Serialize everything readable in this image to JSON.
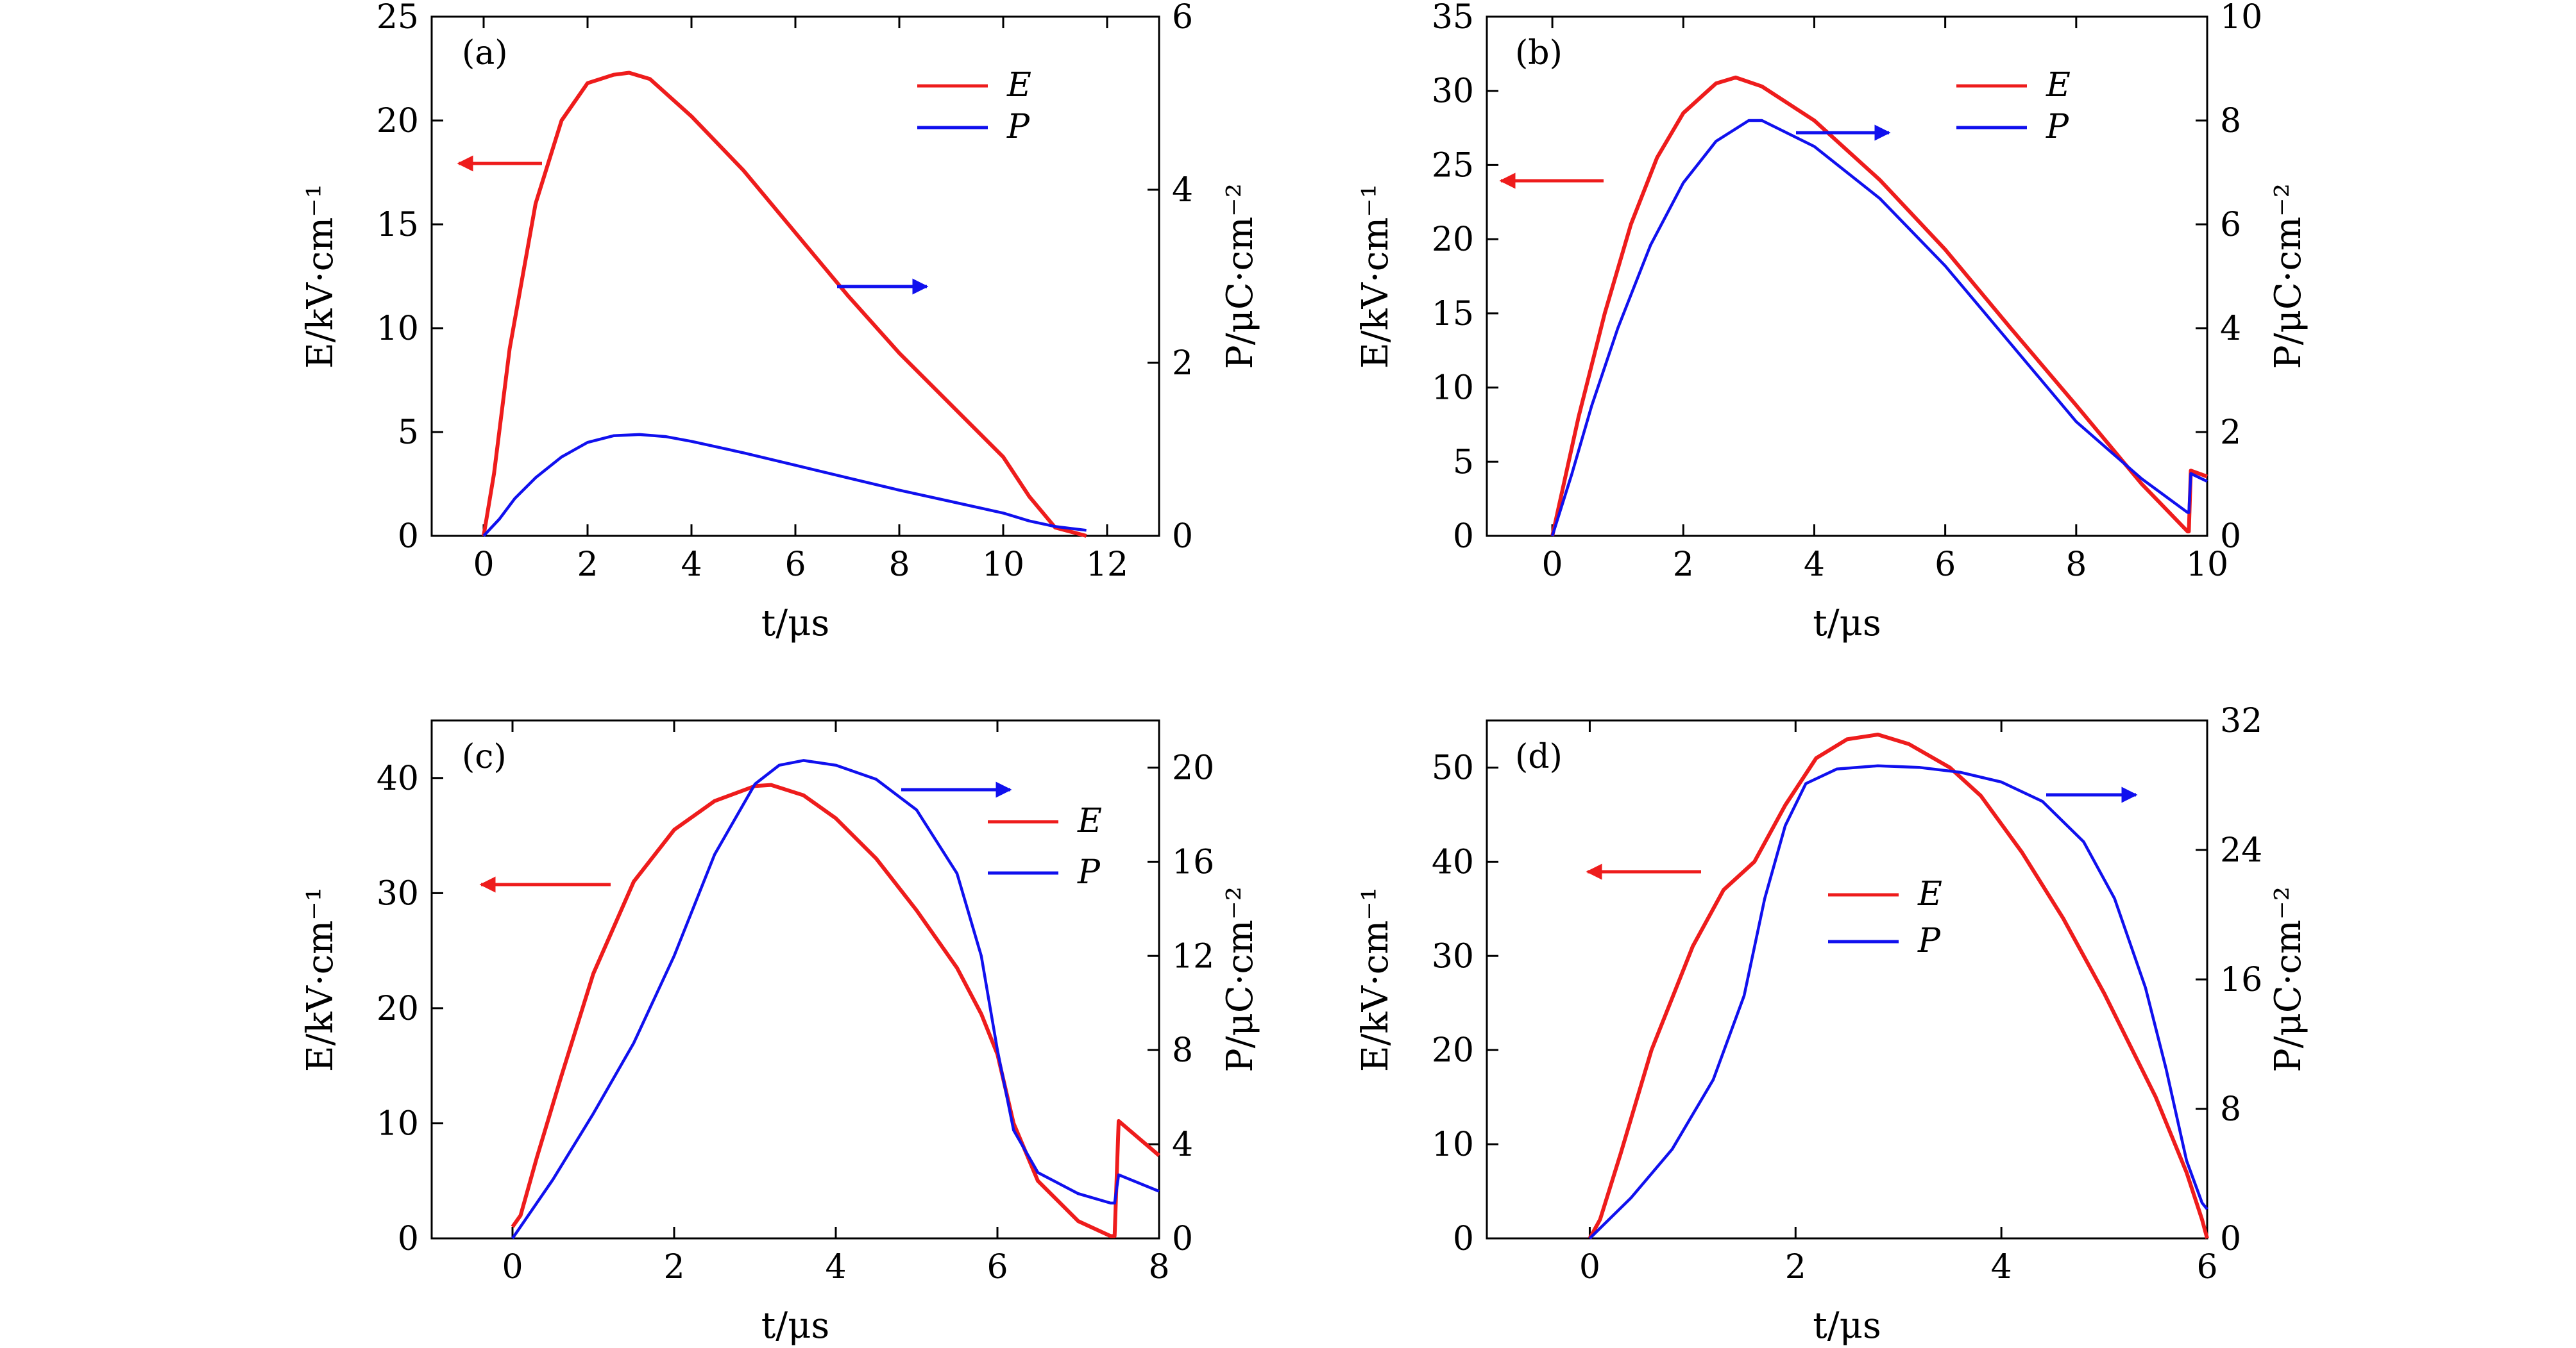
{
  "colors": {
    "E": "#ee1c1c",
    "P": "#1010ee",
    "axis": "#000000"
  },
  "chart_data": [
    {
      "type": "line",
      "panel_label": "(a)",
      "xlabel": "t/μs",
      "ylabel_left": "E/kV·cm⁻¹",
      "ylabel_right": "P/μC·cm⁻²",
      "xlim": [
        -1,
        13
      ],
      "xticks": [
        0,
        2,
        4,
        6,
        8,
        10,
        12
      ],
      "ylim_left": [
        0,
        25
      ],
      "yticks_left": [
        0,
        5,
        10,
        15,
        20,
        25
      ],
      "ylim_right": [
        0,
        6
      ],
      "yticks_right": [
        0,
        2,
        4,
        6
      ],
      "legend": {
        "position": "top-right",
        "entries": [
          "E",
          "P"
        ]
      },
      "arrows": [
        {
          "series": "E",
          "direction": "left"
        },
        {
          "series": "P",
          "direction": "right"
        }
      ],
      "series": [
        {
          "name": "E",
          "axis": "left",
          "x": [
            0,
            0.2,
            0.5,
            1.0,
            1.5,
            2.0,
            2.5,
            2.8,
            3.2,
            4.0,
            5.0,
            6.0,
            7.0,
            8.0,
            9.0,
            10.0,
            10.5,
            11.0,
            11.6
          ],
          "y": [
            0,
            3,
            9,
            16,
            20,
            21.8,
            22.2,
            22.3,
            22.0,
            20.2,
            17.6,
            14.6,
            11.6,
            8.8,
            6.3,
            3.8,
            1.9,
            0.4,
            0
          ]
        },
        {
          "name": "P",
          "axis": "left",
          "x": [
            0,
            0.3,
            0.6,
            1.0,
            1.5,
            2.0,
            2.5,
            3.0,
            3.5,
            4.0,
            5.0,
            6.0,
            7.0,
            8.0,
            9.0,
            10.0,
            10.5,
            11.0,
            11.6
          ],
          "y": [
            0,
            0.8,
            1.8,
            2.8,
            3.8,
            4.5,
            4.82,
            4.88,
            4.78,
            4.55,
            4.0,
            3.4,
            2.8,
            2.2,
            1.65,
            1.1,
            0.72,
            0.45,
            0.27
          ]
        }
      ]
    },
    {
      "type": "line",
      "panel_label": "(b)",
      "xlabel": "t/μs",
      "ylabel_left": "E/kV·cm⁻¹",
      "ylabel_right": "P/μC·cm⁻²",
      "xlim": [
        -1,
        10
      ],
      "xticks": [
        0,
        2,
        4,
        6,
        8,
        10
      ],
      "ylim_left": [
        0,
        35
      ],
      "yticks_left": [
        0,
        5,
        10,
        15,
        20,
        25,
        30,
        35
      ],
      "ylim_right": [
        0,
        10
      ],
      "yticks_right": [
        0,
        2,
        4,
        6,
        8,
        10
      ],
      "legend": {
        "position": "top-right",
        "entries": [
          "E",
          "P"
        ]
      },
      "arrows": [
        {
          "series": "E",
          "direction": "left"
        },
        {
          "series": "P",
          "direction": "right"
        }
      ],
      "series": [
        {
          "name": "E",
          "axis": "left",
          "x": [
            0,
            0.1,
            0.4,
            0.8,
            1.2,
            1.6,
            2.0,
            2.5,
            2.8,
            3.2,
            4.0,
            5.0,
            6.0,
            7.0,
            8.0,
            9.0,
            9.7,
            9.72,
            9.75,
            10.0
          ],
          "y": [
            0,
            2,
            8,
            15,
            21,
            25.5,
            28.5,
            30.5,
            30.9,
            30.3,
            28.0,
            24.0,
            19.3,
            14.0,
            8.8,
            3.5,
            0.3,
            0.3,
            4.4,
            4.0
          ]
        },
        {
          "name": "P",
          "axis": "right",
          "x": [
            0,
            0.3,
            0.6,
            1.0,
            1.5,
            2.0,
            2.5,
            3.0,
            3.2,
            4.0,
            5.0,
            6.0,
            7.0,
            8.0,
            9.0,
            9.7,
            9.72,
            9.75,
            10.0
          ],
          "y": [
            0,
            1.2,
            2.5,
            4.0,
            5.6,
            6.8,
            7.6,
            8.0,
            8.0,
            7.5,
            6.5,
            5.2,
            3.7,
            2.2,
            1.1,
            0.45,
            0.45,
            1.2,
            1.05
          ]
        }
      ]
    },
    {
      "type": "line",
      "panel_label": "(c)",
      "xlabel": "t/μs",
      "ylabel_left": "E/kV·cm⁻¹",
      "ylabel_right": "P/μC·cm⁻²",
      "xlim": [
        -1,
        8
      ],
      "xticks": [
        0,
        2,
        4,
        6,
        8
      ],
      "ylim_left": [
        0,
        45
      ],
      "yticks_left": [
        0,
        10,
        20,
        30,
        40
      ],
      "ylim_right": [
        0,
        22
      ],
      "yticks_right": [
        0,
        4,
        8,
        12,
        16,
        20
      ],
      "legend": {
        "position": "top-right",
        "entries": [
          "E",
          "P"
        ]
      },
      "arrows": [
        {
          "series": "E",
          "direction": "left"
        },
        {
          "series": "P",
          "direction": "right"
        }
      ],
      "series": [
        {
          "name": "E",
          "axis": "left",
          "x": [
            0,
            0.1,
            0.3,
            0.6,
            1.0,
            1.5,
            2.0,
            2.5,
            3.0,
            3.2,
            3.6,
            4.0,
            4.5,
            5.0,
            5.5,
            5.8,
            6.0,
            6.2,
            6.5,
            7.0,
            7.4,
            7.45,
            7.5,
            8.0
          ],
          "y": [
            1,
            2,
            7,
            14,
            23,
            31,
            35.5,
            38,
            39.3,
            39.4,
            38.5,
            36.5,
            33,
            28.5,
            23.5,
            19.5,
            16,
            10,
            5,
            1.5,
            0.2,
            0.2,
            10.2,
            7.2
          ]
        },
        {
          "name": "P",
          "axis": "right",
          "x": [
            0,
            0.5,
            1.0,
            1.5,
            2.0,
            2.5,
            3.0,
            3.3,
            3.6,
            4.0,
            4.5,
            5.0,
            5.5,
            5.8,
            6.0,
            6.2,
            6.5,
            7.0,
            7.4,
            7.45,
            7.5,
            8.0
          ],
          "y": [
            0,
            2.5,
            5.3,
            8.3,
            12,
            16.3,
            19.3,
            20.1,
            20.3,
            20.1,
            19.5,
            18.2,
            15.5,
            12,
            8,
            4.6,
            2.8,
            1.9,
            1.5,
            1.5,
            2.7,
            2.0
          ]
        }
      ]
    },
    {
      "type": "line",
      "panel_label": "(d)",
      "xlabel": "t/μs",
      "ylabel_left": "E/kV·cm⁻¹",
      "ylabel_right": "P/μC·cm⁻²",
      "xlim": [
        -1,
        6
      ],
      "xticks": [
        0,
        2,
        4,
        6
      ],
      "ylim_left": [
        0,
        55
      ],
      "yticks_left": [
        0,
        10,
        20,
        30,
        40,
        50
      ],
      "ylim_right": [
        0,
        32
      ],
      "yticks_right": [
        0,
        8,
        16,
        24,
        32
      ],
      "legend": {
        "position": "center",
        "entries": [
          "E",
          "P"
        ]
      },
      "arrows": [
        {
          "series": "E",
          "direction": "left"
        },
        {
          "series": "P",
          "direction": "right"
        }
      ],
      "series": [
        {
          "name": "E",
          "axis": "left",
          "x": [
            0,
            0.1,
            0.3,
            0.6,
            1.0,
            1.3,
            1.6,
            1.9,
            2.2,
            2.5,
            2.8,
            3.1,
            3.5,
            3.8,
            4.2,
            4.6,
            5.0,
            5.5,
            5.8,
            5.95,
            6.0
          ],
          "y": [
            0,
            2,
            9,
            20,
            31,
            37,
            40,
            46,
            51,
            53,
            53.5,
            52.5,
            50,
            47,
            41,
            34,
            26,
            15,
            7,
            2,
            0
          ]
        },
        {
          "name": "P",
          "axis": "right",
          "x": [
            0,
            0.4,
            0.8,
            1.2,
            1.5,
            1.7,
            1.9,
            2.1,
            2.4,
            2.8,
            3.2,
            3.6,
            4.0,
            4.4,
            4.8,
            5.1,
            5.4,
            5.6,
            5.8,
            5.95,
            6.0
          ],
          "y": [
            0,
            2.5,
            5.5,
            9.8,
            15,
            21,
            25.5,
            28.1,
            29.0,
            29.2,
            29.1,
            28.8,
            28.2,
            27.0,
            24.5,
            21,
            15.5,
            10.5,
            4.8,
            2.2,
            1.8
          ]
        }
      ]
    }
  ]
}
